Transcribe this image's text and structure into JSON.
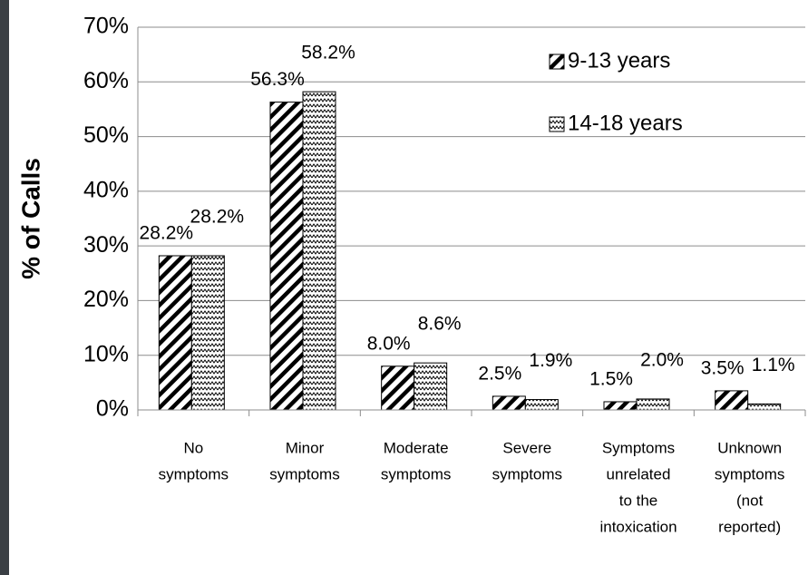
{
  "chart_data": {
    "type": "bar",
    "y_label": "% of Calls",
    "categories": [
      [
        "No",
        "symptoms"
      ],
      [
        "Minor",
        "symptoms"
      ],
      [
        "Moderate",
        "symptoms"
      ],
      [
        "Severe",
        "symptoms"
      ],
      [
        "Symptoms",
        "unrelated",
        "to the",
        "intoxication"
      ],
      [
        "Unknown",
        "symptoms",
        "(not",
        "reported)"
      ]
    ],
    "series": [
      {
        "name": "9-13 years",
        "color": "#000000",
        "pattern": "stripes",
        "values": [
          28.2,
          56.3,
          8.0,
          2.5,
          1.5,
          3.5
        ],
        "value_labels": [
          "28.2%",
          "56.3%",
          "8.0%",
          "2.5%",
          "1.5%",
          "3.5%"
        ]
      },
      {
        "name": "14-18 years",
        "color": "#000000",
        "pattern": "zigzag",
        "values": [
          28.2,
          58.2,
          8.6,
          1.9,
          2.0,
          1.1
        ],
        "value_labels": [
          "28.2%",
          "58.2%",
          "8.6%",
          "1.9%",
          "2.0%",
          "1.1%"
        ]
      }
    ],
    "ylim": [
      0,
      70
    ],
    "yticks": [
      {
        "value": 0,
        "label": "0%"
      },
      {
        "value": 10,
        "label": "10%"
      },
      {
        "value": 20,
        "label": "20%"
      },
      {
        "value": 30,
        "label": "30%"
      },
      {
        "value": 40,
        "label": "40%"
      },
      {
        "value": 50,
        "label": "50%"
      },
      {
        "value": 60,
        "label": "60%"
      },
      {
        "value": 70,
        "label": "70%"
      }
    ],
    "grid": true
  }
}
